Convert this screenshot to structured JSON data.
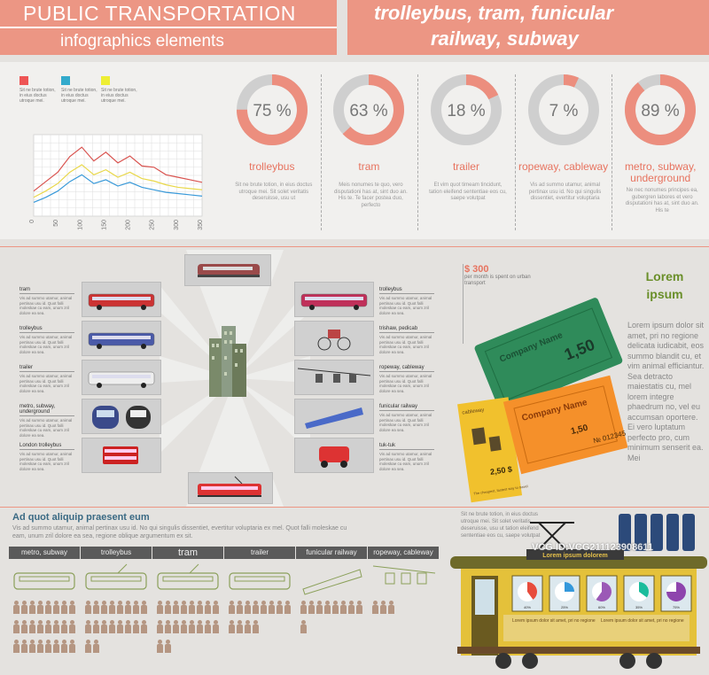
{
  "header": {
    "title": "PUBLIC TRANSPORTATION",
    "subtitle": "infographics elements",
    "right_title_line1": "trolleybus, tram, funicular",
    "right_title_line2": "railway, subway"
  },
  "colors": {
    "salmon": "#ec9684",
    "accent_text": "#e7735f",
    "green": "#6a8f2a",
    "gray": "#5a5a5a",
    "background": "#e4e2df"
  },
  "line_chart": {
    "legend": [
      {
        "color": "#e55",
        "text": "Sit ne brute totion, in eius doctus utroque mei."
      },
      {
        "color": "#3ac",
        "text": "Sit ne brute totion, in eius doctus utroque mei."
      },
      {
        "color": "#ee3",
        "text": "Sit ne brute totion, in eius doctus utroque mei."
      }
    ],
    "x_ticks": [
      "0",
      "50",
      "100",
      "150",
      "200",
      "250",
      "300",
      "350"
    ]
  },
  "chart_data": {
    "type": "line",
    "x": [
      0,
      25,
      50,
      75,
      100,
      125,
      150,
      175,
      200,
      225,
      250,
      275,
      300,
      325,
      350
    ],
    "series": [
      {
        "color": "#d9534f",
        "values": [
          40,
          55,
          70,
          95,
          110,
          88,
          102,
          85,
          96,
          80,
          78,
          66,
          62,
          58,
          54
        ]
      },
      {
        "color": "#e9d84a",
        "values": [
          30,
          40,
          52,
          70,
          82,
          66,
          74,
          62,
          70,
          60,
          56,
          50,
          46,
          44,
          42
        ]
      },
      {
        "color": "#3a9ad9",
        "values": [
          22,
          30,
          40,
          55,
          66,
          52,
          58,
          48,
          54,
          46,
          42,
          38,
          36,
          34,
          32
        ]
      }
    ],
    "xlim": [
      0,
      350
    ],
    "ylim": [
      0,
      130
    ],
    "grid": true
  },
  "donuts": [
    {
      "value": 75,
      "label": "75 %",
      "name": "trolleybus",
      "desc": "Sit ne brute totion, in eius doctus utroque mei. Sit solet veritatis deseruisse, usu ut"
    },
    {
      "value": 63,
      "label": "63 %",
      "name": "tram",
      "desc": "Meis nonumes te quo, vero disputationi has at, sint duo an. His te. Te facer postea duo, perfecto"
    },
    {
      "value": 18,
      "label": "18 %",
      "name": "trailer",
      "desc": "Et vim quot timeam tincidunt, tation eleifend sententiae eos cu, saepe volutpat"
    },
    {
      "value": 7,
      "label": "7 %",
      "name": "ropeway, cableway",
      "desc": "Vis ad summo utamur, animal pertinax usu id. No qui singulis dissentiet, evertitur voluptaria"
    },
    {
      "value": 89,
      "label": "89 %",
      "name": "metro, subway, underground",
      "desc": "Ne nec nonumes principes ea, gubergren labores et vero disputationi has at, sint duo an. His te"
    }
  ],
  "left_items": [
    {
      "title": "tram",
      "text": "Vis ad summo utamur, animal pertinax usu id. Quot falli moleskae cu eam, unum zril dolore ea sea."
    },
    {
      "title": "trolleybus",
      "text": "Vis ad summo utamur, animal pertinax usu id. Quot falli moleskae cu eam, unum zril dolore ea sea."
    },
    {
      "title": "trailer",
      "text": "Vis ad summo utamur, animal pertinax usu id. Quot falli moleskae cu eam, unum zril dolore ea sea."
    },
    {
      "title": "metro, subway, underground",
      "text": "Vis ad summo utamur, animal pertinax usu id. Quot falli moleskae cu eam, unum zril dolore ea sea."
    },
    {
      "title": "London trolleybus",
      "text": "Vis ad summo utamur, animal pertinax usu id. Quot falli moleskae cu eam, unum zril dolore ea sea."
    }
  ],
  "right_items": [
    {
      "title": "trolleybus",
      "text": "Vis ad summo utamur, animal pertinax usu id. Quot falli moleskae cu eam, unum zril dolore ea sea."
    },
    {
      "title": "trishaw, pedicab",
      "text": "Vis ad summo utamur, animal pertinax usu id. Quot falli moleskae cu eam, unum zril dolore ea sea."
    },
    {
      "title": "ropeway, cableway",
      "text": "Vis ad summo utamur, animal pertinax usu id. Quot falli moleskae cu eam, unum zril dolore ea sea."
    },
    {
      "title": "funicular railway",
      "text": "Vis ad summo utamur, animal pertinax usu id. Quot falli moleskae cu eam, unum zril dolore ea sea."
    },
    {
      "title": "tuk-tuk",
      "text": "Vis ad summo utamur, animal pertinax usu id. Quot falli moleskae cu eam, unum zril dolore ea sea."
    }
  ],
  "spend": {
    "amount": "$ 300",
    "text": "per month is spent on urban transport"
  },
  "tickets": {
    "company": "Company Name",
    "company2": "Company Name",
    "price1": "1,50",
    "price2": "1,50",
    "price3": "2,50 $",
    "number": "№ 012345",
    "label": "cableway",
    "tiny": "The cheapest, fastest way to travel"
  },
  "lorem": {
    "heading": "Lorem ipsum",
    "body": "Lorem ipsum dolor sit amet, pri no regione delicata iudicabit, eos summo blandit cu, et vim animal efficiantur. Sea detracto maiestatis cu, mel lorem integre phaedrum no, vel eu accumsan oportere. Ei vero luptatum perfecto pro, cum minimum senserit ea. Mei"
  },
  "bottom": {
    "heading": "Ad quot aliquip praesent eum",
    "desc": "Vis ad summo utamur, animal pertinax usu id. No qui singulis dissentiet, evertitur voluptaria ex mel. Quot falli moleskae cu eam, unum zril dolore ea sea, regione oblique argumentum ex sit.",
    "tabs": [
      "metro, subway",
      "trolleybus",
      "tram",
      "trailer",
      "funicular railway",
      "ropeway, cableway"
    ],
    "people_counts": [
      24,
      18,
      18,
      12,
      9,
      3
    ],
    "text_block": "Sit ne brute totion, in eius doctus utroque mei. Sit solet veritatis deseruisse, usu ut tation eleifend sententiae eos cu, saepe volutpat"
  },
  "tram_graphic": {
    "sign": "Lorem ipsum dolorem",
    "pies": [
      {
        "value": 40,
        "label": "40%"
      },
      {
        "value": 25,
        "label": "25%"
      },
      {
        "value": 60,
        "label": "60%"
      },
      {
        "value": 35,
        "label": "35%"
      },
      {
        "value": 75,
        "label": "75%"
      }
    ],
    "caption1": "Lorem ipsum dolor sit amet, pri no regione",
    "caption2": "Lorem ipsum dolor sit amet, pri no regione"
  },
  "watermark": "VCG ID:VCG211123908611"
}
